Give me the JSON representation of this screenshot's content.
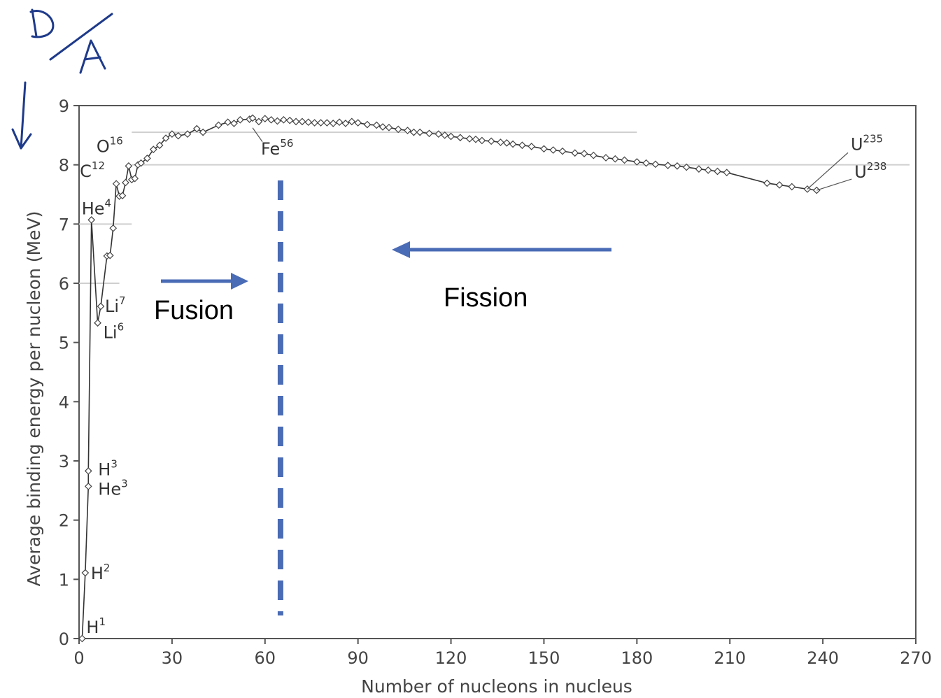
{
  "annotations": {
    "handwritten_ratio": "D/A",
    "fusion_label": "Fusion",
    "fission_label": "Fission",
    "arrow_color": "#4a6bb5",
    "divider_x": 65
  },
  "chart_data": {
    "type": "line",
    "title": "",
    "xlabel": "Number of nucleons in nucleus",
    "ylabel": "Average binding energy per nucleon (MeV)",
    "xlim": [
      0,
      270
    ],
    "ylim": [
      0,
      9
    ],
    "x_ticks": [
      "0",
      "30",
      "60",
      "90",
      "120",
      "150",
      "180",
      "210",
      "240",
      "270"
    ],
    "y_ticks": [
      "0",
      "1",
      "2",
      "3",
      "4",
      "5",
      "6",
      "7",
      "8",
      "9"
    ],
    "grid": "partial horizontal reference lines",
    "reference_lines": [
      {
        "y": 8.55,
        "x_start": 17,
        "x_end": 180
      },
      {
        "y": 8.0,
        "x_start": 17,
        "x_end": 268
      },
      {
        "y": 7.0,
        "x_start": 0,
        "x_end": 17
      },
      {
        "y": 6.0,
        "x_start": 0,
        "x_end": 13
      }
    ],
    "series": [
      {
        "x": [
          1,
          2,
          3,
          3,
          4,
          6,
          7,
          9,
          10,
          11,
          12,
          13,
          14,
          15,
          16,
          17,
          18,
          19,
          20,
          22,
          24,
          26,
          28,
          30,
          32,
          35,
          38,
          40,
          45,
          48,
          50,
          52,
          55,
          56,
          58,
          60,
          62,
          64,
          66,
          68,
          70,
          72,
          74,
          76,
          78,
          80,
          82,
          84,
          86,
          88,
          90,
          93,
          96,
          98,
          100,
          103,
          106,
          108,
          110,
          113,
          116,
          118,
          120,
          123,
          126,
          128,
          130,
          133,
          136,
          138,
          140,
          143,
          146,
          150,
          153,
          156,
          160,
          163,
          166,
          170,
          173,
          176,
          180,
          183,
          186,
          190,
          193,
          196,
          200,
          203,
          206,
          209,
          222,
          226,
          230,
          235,
          238
        ],
        "y": [
          0,
          1.11,
          2.57,
          2.83,
          7.07,
          5.33,
          5.61,
          6.46,
          6.47,
          6.93,
          7.68,
          7.47,
          7.48,
          7.7,
          7.98,
          7.75,
          7.77,
          8.0,
          8.03,
          8.11,
          8.26,
          8.33,
          8.45,
          8.52,
          8.49,
          8.52,
          8.61,
          8.55,
          8.67,
          8.72,
          8.7,
          8.76,
          8.77,
          8.79,
          8.73,
          8.78,
          8.76,
          8.74,
          8.76,
          8.75,
          8.73,
          8.73,
          8.72,
          8.71,
          8.71,
          8.71,
          8.7,
          8.72,
          8.7,
          8.73,
          8.71,
          8.68,
          8.67,
          8.64,
          8.63,
          8.6,
          8.58,
          8.55,
          8.55,
          8.53,
          8.52,
          8.5,
          8.48,
          8.46,
          8.44,
          8.43,
          8.41,
          8.4,
          8.38,
          8.37,
          8.35,
          8.33,
          8.31,
          8.27,
          8.25,
          8.23,
          8.2,
          8.19,
          8.16,
          8.12,
          8.1,
          8.08,
          8.05,
          8.03,
          8.01,
          7.99,
          7.98,
          7.96,
          7.93,
          7.91,
          7.89,
          7.87,
          7.69,
          7.66,
          7.63,
          7.59,
          7.57
        ]
      }
    ],
    "isotopes": [
      {
        "symbol": "H",
        "mass": "1",
        "x": 1,
        "y": 0
      },
      {
        "symbol": "H",
        "mass": "2",
        "x": 2,
        "y": 1.11
      },
      {
        "symbol": "H",
        "mass": "3",
        "x": 3,
        "y": 2.83
      },
      {
        "symbol": "He",
        "mass": "3",
        "x": 3,
        "y": 2.57
      },
      {
        "symbol": "He",
        "mass": "4",
        "x": 4,
        "y": 7.07
      },
      {
        "symbol": "Li",
        "mass": "6",
        "x": 6,
        "y": 5.33
      },
      {
        "symbol": "Li",
        "mass": "7",
        "x": 7,
        "y": 5.61
      },
      {
        "symbol": "C",
        "mass": "12",
        "x": 12,
        "y": 7.68
      },
      {
        "symbol": "O",
        "mass": "16",
        "x": 16,
        "y": 7.98
      },
      {
        "symbol": "Fe",
        "mass": "56",
        "x": 56,
        "y": 8.79
      },
      {
        "symbol": "U",
        "mass": "235",
        "x": 235,
        "y": 7.59
      },
      {
        "symbol": "U",
        "mass": "238",
        "x": 238,
        "y": 7.57
      }
    ]
  }
}
